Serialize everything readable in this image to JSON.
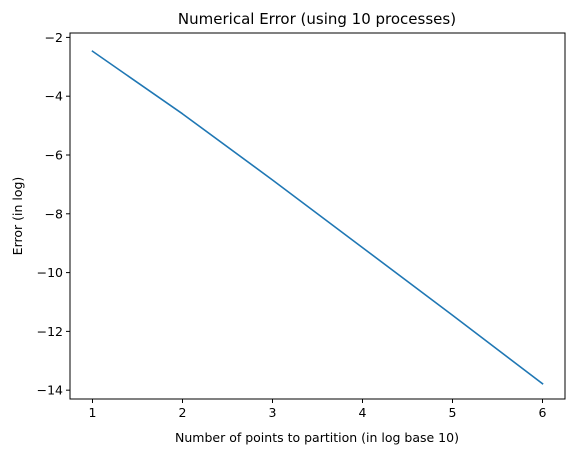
{
  "chart_data": {
    "type": "line",
    "title": "Numerical Error (using 10 processes)",
    "xlabel": "Number of points to partition (in log base 10)",
    "ylabel": "Error (in log)",
    "xlim": [
      0.75,
      6.25
    ],
    "ylim": [
      -14.3,
      -1.85
    ],
    "x_ticks": [
      1,
      2,
      3,
      4,
      5,
      6
    ],
    "y_ticks": [
      -14,
      -12,
      -10,
      -8,
      -6,
      -4,
      -2
    ],
    "x_tick_labels": [
      "1",
      "2",
      "3",
      "4",
      "5",
      "6"
    ],
    "y_tick_labels": [
      "−14",
      "−12",
      "−10",
      "−8",
      "−6",
      "−4",
      "−2"
    ],
    "grid": false,
    "series": [
      {
        "color": "#1f77b4",
        "x": [
          1,
          2,
          3,
          4,
          5,
          6
        ],
        "y": [
          -2.47,
          -4.6,
          -6.85,
          -9.15,
          -11.45,
          -13.78
        ]
      }
    ]
  }
}
